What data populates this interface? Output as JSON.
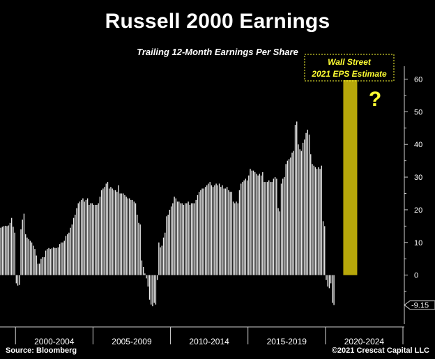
{
  "title": "Russell 2000 Earnings",
  "subtitle": "Trailing 12-Month Earnings Per Share",
  "source": "Source: Bloomberg",
  "copyright": "©2021 Crescat Capital LLC",
  "colors": {
    "background": "#000000",
    "bars": "#e8e8e8",
    "estimate_bar": "#b7a70a",
    "estimate_label": "#ffff33",
    "axis": "#cfcfcf"
  },
  "chart_data": {
    "type": "bar",
    "title": "Russell 2000 Earnings",
    "subtitle": "Trailing 12-Month Earnings Per Share",
    "ylim": [
      -15,
      65
    ],
    "y_ticks": [
      0,
      10,
      20,
      30,
      40,
      50,
      60
    ],
    "y_tick_labels": [
      "0",
      "10",
      "20",
      "30",
      "40",
      "50",
      "60"
    ],
    "x_groups": [
      "2000-2004",
      "2005-2009",
      "2010-2014",
      "2015-2019",
      "2020-2024"
    ],
    "x_range": [
      1999.0,
      2025.0
    ],
    "current_value_label": "-9.15",
    "current_value": -9.15,
    "series": [
      {
        "values": [
          [
            1999.05,
            14.5
          ],
          [
            1999.15,
            14.8
          ],
          [
            1999.25,
            15.0
          ],
          [
            1999.35,
            15.1
          ],
          [
            1999.45,
            15.0
          ],
          [
            1999.55,
            15.2
          ],
          [
            1999.65,
            16.0
          ],
          [
            1999.75,
            17.5
          ],
          [
            1999.85,
            14.8
          ],
          [
            1999.95,
            13.0
          ],
          [
            2000.05,
            -2.5
          ],
          [
            2000.15,
            -3.2
          ],
          [
            2000.25,
            -3.0
          ],
          [
            2000.35,
            14.0
          ],
          [
            2000.45,
            17.0
          ],
          [
            2000.55,
            18.8
          ],
          [
            2000.65,
            12.5
          ],
          [
            2000.75,
            11.5
          ],
          [
            2000.85,
            11.0
          ],
          [
            2000.95,
            10.5
          ],
          [
            2001.05,
            10.0
          ],
          [
            2001.15,
            9.0
          ],
          [
            2001.25,
            8.0
          ],
          [
            2001.35,
            6.0
          ],
          [
            2001.45,
            3.5
          ],
          [
            2001.55,
            3.5
          ],
          [
            2001.65,
            5.0
          ],
          [
            2001.75,
            5.5
          ],
          [
            2001.85,
            5.5
          ],
          [
            2001.95,
            7.5
          ],
          [
            2002.05,
            8.0
          ],
          [
            2002.15,
            8.3
          ],
          [
            2002.25,
            8.0
          ],
          [
            2002.35,
            8.2
          ],
          [
            2002.45,
            8.5
          ],
          [
            2002.55,
            8.3
          ],
          [
            2002.65,
            8.3
          ],
          [
            2002.75,
            8.5
          ],
          [
            2002.85,
            9.5
          ],
          [
            2002.95,
            10.0
          ],
          [
            2003.05,
            10.0
          ],
          [
            2003.15,
            10.5
          ],
          [
            2003.25,
            12.0
          ],
          [
            2003.35,
            12.5
          ],
          [
            2003.45,
            13.0
          ],
          [
            2003.55,
            14.5
          ],
          [
            2003.65,
            15.5
          ],
          [
            2003.75,
            17.5
          ],
          [
            2003.85,
            18.5
          ],
          [
            2003.95,
            20.5
          ],
          [
            2004.05,
            22.0
          ],
          [
            2004.15,
            22.5
          ],
          [
            2004.25,
            23.0
          ],
          [
            2004.35,
            23.5
          ],
          [
            2004.45,
            22.5
          ],
          [
            2004.55,
            23.0
          ],
          [
            2004.65,
            23.5
          ],
          [
            2004.75,
            21.5
          ],
          [
            2004.85,
            22.0
          ],
          [
            2004.95,
            22.0
          ],
          [
            2005.05,
            21.5
          ],
          [
            2005.15,
            21.5
          ],
          [
            2005.25,
            21.5
          ],
          [
            2005.35,
            22.0
          ],
          [
            2005.45,
            24.0
          ],
          [
            2005.55,
            26.0
          ],
          [
            2005.65,
            26.5
          ],
          [
            2005.75,
            27.0
          ],
          [
            2005.85,
            28.0
          ],
          [
            2005.95,
            28.5
          ],
          [
            2006.05,
            26.5
          ],
          [
            2006.15,
            27.0
          ],
          [
            2006.25,
            26.5
          ],
          [
            2006.35,
            26.0
          ],
          [
            2006.45,
            26.0
          ],
          [
            2006.55,
            25.5
          ],
          [
            2006.65,
            27.5
          ],
          [
            2006.75,
            25.0
          ],
          [
            2006.85,
            25.0
          ],
          [
            2006.95,
            25.0
          ],
          [
            2007.05,
            24.5
          ],
          [
            2007.15,
            24.0
          ],
          [
            2007.25,
            23.5
          ],
          [
            2007.35,
            23.5
          ],
          [
            2007.45,
            23.0
          ],
          [
            2007.55,
            23.0
          ],
          [
            2007.65,
            22.5
          ],
          [
            2007.75,
            22.0
          ],
          [
            2007.85,
            18.5
          ],
          [
            2007.95,
            16.0
          ],
          [
            2008.05,
            15.5
          ],
          [
            2008.15,
            4.5
          ],
          [
            2008.25,
            2.5
          ],
          [
            2008.35,
            0.5
          ],
          [
            2008.45,
            -1.0
          ],
          [
            2008.55,
            -3.5
          ],
          [
            2008.65,
            -7.5
          ],
          [
            2008.75,
            -9.0
          ],
          [
            2008.85,
            -9.5
          ],
          [
            2008.95,
            -8.5
          ],
          [
            2009.05,
            -9.0
          ],
          [
            2009.15,
            -1.5
          ],
          [
            2009.25,
            10.0
          ],
          [
            2009.35,
            8.5
          ],
          [
            2009.45,
            9.0
          ],
          [
            2009.55,
            11.5
          ],
          [
            2009.65,
            13.0
          ],
          [
            2009.75,
            18.0
          ],
          [
            2009.85,
            18.5
          ],
          [
            2009.95,
            20.0
          ],
          [
            2010.05,
            21.0
          ],
          [
            2010.15,
            22.0
          ],
          [
            2010.25,
            24.0
          ],
          [
            2010.35,
            23.5
          ],
          [
            2010.45,
            22.5
          ],
          [
            2010.55,
            22.5
          ],
          [
            2010.65,
            22.0
          ],
          [
            2010.75,
            22.0
          ],
          [
            2010.85,
            21.5
          ],
          [
            2010.95,
            22.0
          ],
          [
            2011.05,
            22.0
          ],
          [
            2011.15,
            22.5
          ],
          [
            2011.25,
            21.5
          ],
          [
            2011.35,
            22.0
          ],
          [
            2011.45,
            22.0
          ],
          [
            2011.55,
            22.0
          ],
          [
            2011.65,
            23.0
          ],
          [
            2011.75,
            24.5
          ],
          [
            2011.85,
            25.5
          ],
          [
            2011.95,
            26.0
          ],
          [
            2012.05,
            26.5
          ],
          [
            2012.15,
            26.5
          ],
          [
            2012.25,
            27.0
          ],
          [
            2012.35,
            27.5
          ],
          [
            2012.45,
            28.0
          ],
          [
            2012.55,
            28.5
          ],
          [
            2012.65,
            27.5
          ],
          [
            2012.75,
            27.0
          ],
          [
            2012.85,
            27.5
          ],
          [
            2012.95,
            28.0
          ],
          [
            2013.05,
            27.5
          ],
          [
            2013.15,
            28.0
          ],
          [
            2013.25,
            27.0
          ],
          [
            2013.35,
            27.5
          ],
          [
            2013.45,
            26.5
          ],
          [
            2013.55,
            26.5
          ],
          [
            2013.65,
            27.0
          ],
          [
            2013.75,
            26.0
          ],
          [
            2013.85,
            25.5
          ],
          [
            2013.95,
            25.5
          ],
          [
            2014.05,
            22.5
          ],
          [
            2014.15,
            22.0
          ],
          [
            2014.25,
            22.5
          ],
          [
            2014.35,
            22.0
          ],
          [
            2014.45,
            26.0
          ],
          [
            2014.55,
            28.0
          ],
          [
            2014.65,
            28.5
          ],
          [
            2014.75,
            29.0
          ],
          [
            2014.85,
            29.5
          ],
          [
            2014.95,
            29.0
          ],
          [
            2015.05,
            30.5
          ],
          [
            2015.15,
            32.5
          ],
          [
            2015.25,
            32.0
          ],
          [
            2015.35,
            32.0
          ],
          [
            2015.45,
            31.5
          ],
          [
            2015.55,
            31.0
          ],
          [
            2015.65,
            30.5
          ],
          [
            2015.75,
            31.0
          ],
          [
            2015.85,
            30.5
          ],
          [
            2015.95,
            31.5
          ],
          [
            2016.05,
            28.5
          ],
          [
            2016.15,
            28.5
          ],
          [
            2016.25,
            28.5
          ],
          [
            2016.35,
            29.0
          ],
          [
            2016.45,
            28.5
          ],
          [
            2016.55,
            28.5
          ],
          [
            2016.65,
            29.5
          ],
          [
            2016.75,
            30.0
          ],
          [
            2016.85,
            29.5
          ],
          [
            2016.95,
            20.5
          ],
          [
            2017.05,
            19.5
          ],
          [
            2017.15,
            28.0
          ],
          [
            2017.25,
            29.5
          ],
          [
            2017.35,
            30.0
          ],
          [
            2017.45,
            34.0
          ],
          [
            2017.55,
            35.0
          ],
          [
            2017.65,
            35.5
          ],
          [
            2017.75,
            36.0
          ],
          [
            2017.85,
            37.5
          ],
          [
            2017.95,
            38.0
          ],
          [
            2018.05,
            46.0
          ],
          [
            2018.15,
            47.0
          ],
          [
            2018.25,
            40.0
          ],
          [
            2018.35,
            38.5
          ],
          [
            2018.45,
            38.0
          ],
          [
            2018.55,
            40.5
          ],
          [
            2018.65,
            41.5
          ],
          [
            2018.75,
            43.5
          ],
          [
            2018.85,
            44.5
          ],
          [
            2018.95,
            43.0
          ],
          [
            2019.05,
            37.0
          ],
          [
            2019.15,
            34.0
          ],
          [
            2019.25,
            33.5
          ],
          [
            2019.35,
            33.0
          ],
          [
            2019.45,
            32.5
          ],
          [
            2019.55,
            33.0
          ],
          [
            2019.65,
            32.5
          ],
          [
            2019.75,
            33.5
          ],
          [
            2019.85,
            16.5
          ],
          [
            2019.95,
            15.0
          ],
          [
            2020.05,
            -1.5
          ],
          [
            2020.15,
            -3.5
          ],
          [
            2020.25,
            -4.0
          ],
          [
            2020.35,
            -2.5
          ],
          [
            2020.45,
            -8.5
          ],
          [
            2020.55,
            -9.15
          ]
        ]
      }
    ],
    "annotations": [
      {
        "text": "Wall Street",
        "text2": "2021 EPS Estimate",
        "type": "estimate-bar",
        "value": 60
      },
      {
        "text": "?",
        "type": "question-mark"
      }
    ]
  }
}
